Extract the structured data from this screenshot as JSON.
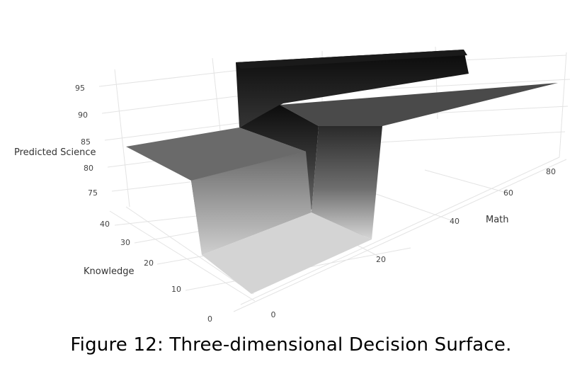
{
  "chart_data": {
    "type": "surface3d",
    "zlabel": "Predicted Science",
    "xlabel": "Knowledge",
    "ylabel": "Math",
    "z_ticks": [
      75,
      80,
      85,
      90,
      95
    ],
    "x_ticks": [
      0,
      10,
      20,
      30,
      40
    ],
    "y_ticks": [
      0,
      20,
      40,
      60,
      80
    ],
    "xlim": [
      0,
      40
    ],
    "ylim": [
      0,
      90
    ],
    "zlim": [
      72,
      97
    ],
    "surface": {
      "knowledge_split": 31,
      "math_split": 33,
      "levels": [
        {
          "knowledge_range": [
            0,
            31
          ],
          "math_range": [
            0,
            33
          ],
          "predicted_science": 72
        },
        {
          "knowledge_range": [
            31,
            45
          ],
          "math_range": [
            0,
            33
          ],
          "predicted_science": 83
        },
        {
          "knowledge_range": [
            0,
            31
          ],
          "math_range": [
            33,
            90
          ],
          "predicted_science": 88
        },
        {
          "knowledge_range": [
            31,
            45
          ],
          "math_range": [
            33,
            90
          ],
          "predicted_science": 97
        }
      ]
    },
    "colorscale": [
      "#d8d8d8",
      "#0a0a0a"
    ]
  },
  "caption": "Figure 12: Three-dimensional Decision Surface."
}
